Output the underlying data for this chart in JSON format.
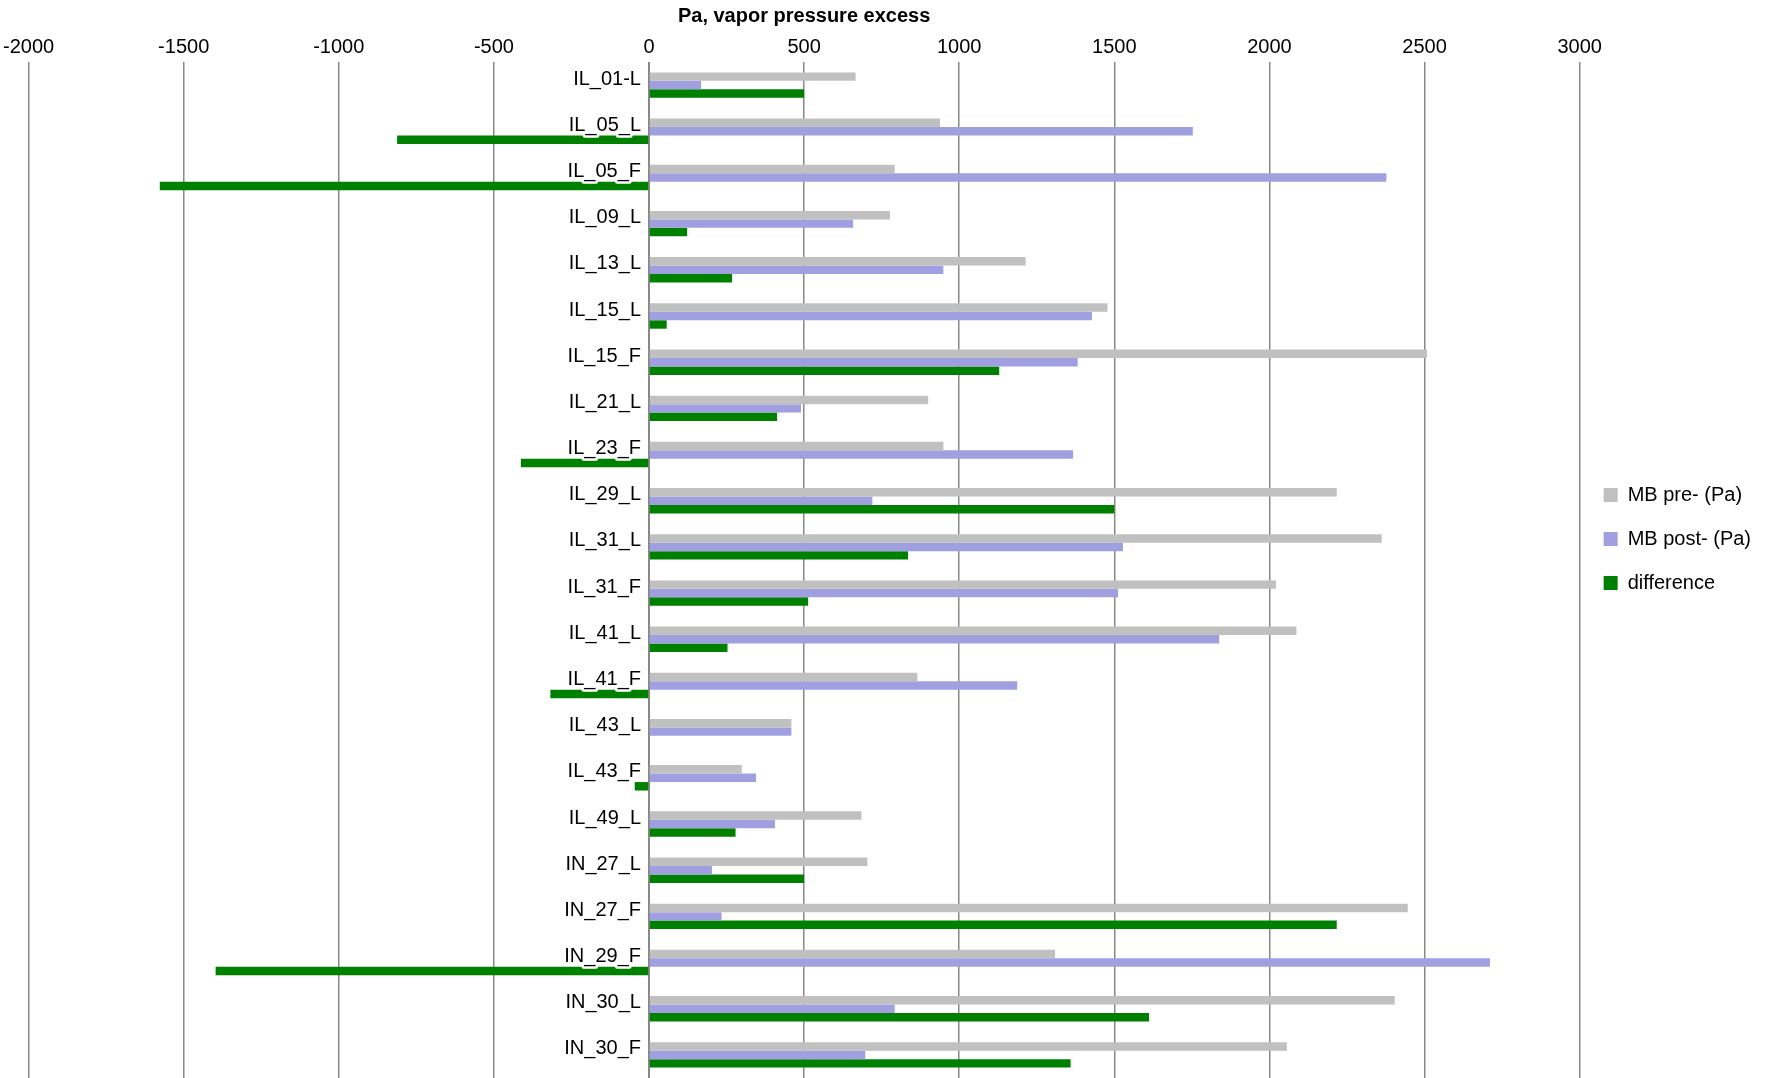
{
  "chart_data": {
    "type": "bar",
    "orientation": "horizontal",
    "xlabel": "Pa, vapor pressure excess",
    "categories": [
      "IL_01-L",
      "IL_05_L",
      "IL_05_F",
      "IL_09_L",
      "IL_13_L",
      "IL_15_L",
      "IL_15_F",
      "IL_21_L",
      "IL_23_F",
      "IL_29_L",
      "IL_31_L",
      "IL_31_F",
      "IL_41_L",
      "IL_41_F",
      "IL_43_L",
      "IL_43_F",
      "IL_49_L",
      "IN_27_L",
      "IN_27_F",
      "IN_29_F",
      "IN_30_L",
      "IN_30_F"
    ],
    "series": [
      {
        "name": "MB pre- (Pa)",
        "color": "#c0c0c0",
        "values": [
          666,
          938,
          792,
          777,
          1214,
          1478,
          2508,
          900,
          949,
          2217,
          2362,
          2021,
          2087,
          865,
          459,
          299,
          685,
          704,
          2446,
          1309,
          2404,
          2056
        ]
      },
      {
        "name": "MB post- (Pa)",
        "color": "#a0a0e0",
        "values": [
          168,
          1753,
          2377,
          658,
          949,
          1428,
          1382,
          490,
          1367,
          720,
          1528,
          1512,
          1838,
          1187,
          459,
          345,
          406,
          203,
          234,
          2711,
          792,
          697
        ]
      },
      {
        "name": "difference",
        "color": "#008000",
        "values": [
          500,
          -812,
          -1577,
          123,
          268,
          57,
          1129,
          413,
          -413,
          1500,
          835,
          513,
          253,
          -318,
          0,
          -46,
          279,
          500,
          2217,
          -1397,
          1612,
          1359
        ]
      }
    ],
    "xlim": [
      -2000,
      3000
    ],
    "xticks": [
      -2000,
      -1500,
      -1000,
      -500,
      0,
      500,
      1000,
      1500,
      2000,
      2500,
      3000
    ],
    "grid": "x",
    "legend": "right"
  }
}
